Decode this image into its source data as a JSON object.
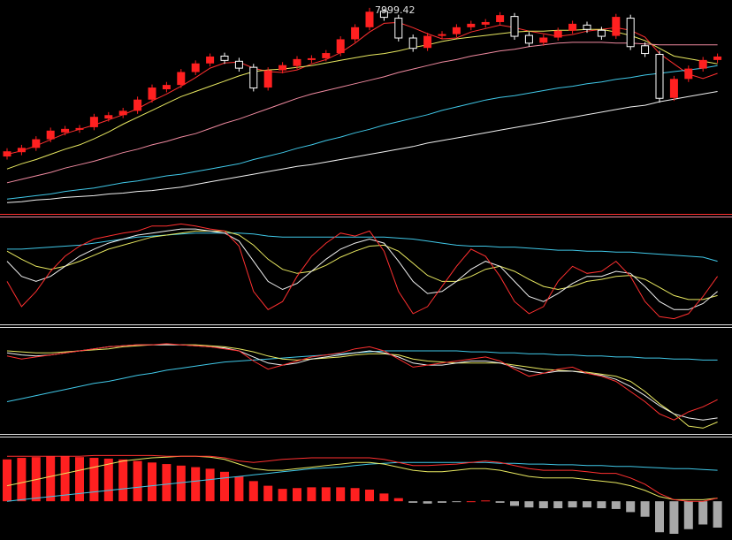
{
  "chart_data": [
    {
      "type": "candlestick",
      "annotation": "7999.42",
      "ylim": [
        5650,
        8050
      ],
      "up_color": "#ff2020",
      "down_color": "#ffffff",
      "open": [
        6280,
        6330,
        6380,
        6480,
        6560,
        6590,
        6620,
        6720,
        6760,
        6810,
        6940,
        7060,
        7110,
        7260,
        7360,
        7440,
        7380,
        7310,
        7080,
        7280,
        7330,
        7400,
        7420,
        7480,
        7640,
        7780,
        7960,
        7880,
        7650,
        7540,
        7680,
        7700,
        7780,
        7810,
        7840,
        7900,
        7680,
        7600,
        7660,
        7740,
        7800,
        7740,
        7680,
        7880,
        7560,
        7460,
        6960,
        7180,
        7300,
        7400
      ],
      "high": [
        6370,
        6410,
        6510,
        6610,
        6630,
        6640,
        6770,
        6790,
        6840,
        6970,
        7110,
        7140,
        7290,
        7390,
        7470,
        7480,
        7420,
        7350,
        7310,
        7370,
        7440,
        7450,
        7510,
        7670,
        7810,
        7999.42,
        7990,
        7920,
        7690,
        7710,
        7730,
        7810,
        7850,
        7870,
        7950,
        7940,
        7720,
        7690,
        7770,
        7850,
        7840,
        7780,
        7930,
        7920,
        7600,
        7500,
        7210,
        7330,
        7430,
        7470
      ],
      "low": [
        6240,
        6290,
        6340,
        6440,
        6520,
        6550,
        6580,
        6680,
        6720,
        6770,
        6900,
        7020,
        7070,
        7220,
        7320,
        7350,
        7260,
        7030,
        7040,
        7240,
        7290,
        7360,
        7380,
        7440,
        7600,
        7740,
        7850,
        7610,
        7490,
        7500,
        7640,
        7660,
        7740,
        7770,
        7800,
        7630,
        7550,
        7560,
        7620,
        7700,
        7710,
        7630,
        7640,
        7510,
        7430,
        6900,
        6920,
        7140,
        7260,
        7360
      ],
      "close": [
        6330,
        6370,
        6470,
        6570,
        6590,
        6600,
        6730,
        6750,
        6800,
        6930,
        7070,
        7100,
        7250,
        7350,
        7430,
        7390,
        7300,
        7070,
        7270,
        7330,
        7400,
        7410,
        7470,
        7630,
        7770,
        7950,
        7890,
        7650,
        7530,
        7670,
        7690,
        7770,
        7810,
        7830,
        7910,
        7670,
        7590,
        7650,
        7730,
        7810,
        7750,
        7670,
        7890,
        7550,
        7470,
        6950,
        7170,
        7290,
        7390,
        7430
      ],
      "series": [
        {
          "color": "#ff3030",
          "values": [
            6300,
            6340,
            6400,
            6470,
            6540,
            6590,
            6640,
            6700,
            6760,
            6830,
            6920,
            7000,
            7090,
            7190,
            7300,
            7360,
            7370,
            7300,
            7260,
            7250,
            7280,
            7350,
            7400,
            7480,
            7590,
            7720,
            7820,
            7830,
            7770,
            7700,
            7640,
            7650,
            7720,
            7760,
            7800,
            7770,
            7730,
            7700,
            7670,
            7690,
            7730,
            7750,
            7770,
            7740,
            7660,
            7470,
            7350,
            7230,
            7180,
            7240
          ]
        },
        {
          "color": "#e8e860",
          "values": [
            6130,
            6190,
            6240,
            6300,
            6360,
            6410,
            6480,
            6560,
            6650,
            6730,
            6810,
            6890,
            6970,
            7030,
            7090,
            7150,
            7210,
            7260,
            7280,
            7290,
            7310,
            7330,
            7360,
            7390,
            7420,
            7450,
            7470,
            7500,
            7540,
            7570,
            7610,
            7640,
            7660,
            7680,
            7700,
            7720,
            7730,
            7730,
            7740,
            7740,
            7750,
            7750,
            7720,
            7680,
            7620,
            7530,
            7440,
            7410,
            7380,
            7350
          ]
        },
        {
          "color": "#f08aa0",
          "values": [
            5970,
            6010,
            6050,
            6090,
            6140,
            6180,
            6220,
            6270,
            6320,
            6360,
            6410,
            6450,
            6500,
            6540,
            6600,
            6660,
            6710,
            6770,
            6830,
            6890,
            6950,
            7000,
            7040,
            7080,
            7120,
            7160,
            7200,
            7250,
            7290,
            7330,
            7370,
            7400,
            7440,
            7470,
            7500,
            7520,
            7550,
            7570,
            7590,
            7600,
            7600,
            7600,
            7590,
            7590,
            7580,
            7570,
            7570,
            7570,
            7570,
            7570
          ]
        },
        {
          "color": "#40c8e8",
          "values": [
            5780,
            5800,
            5820,
            5840,
            5870,
            5890,
            5910,
            5940,
            5970,
            5990,
            6020,
            6050,
            6070,
            6100,
            6130,
            6160,
            6190,
            6240,
            6280,
            6320,
            6370,
            6410,
            6460,
            6500,
            6550,
            6590,
            6640,
            6680,
            6720,
            6760,
            6810,
            6850,
            6890,
            6930,
            6960,
            6980,
            7010,
            7040,
            7070,
            7090,
            7120,
            7140,
            7170,
            7190,
            7220,
            7240,
            7260,
            7280,
            7300,
            7330
          ]
        },
        {
          "color": "#f0f0f0",
          "values": [
            5740,
            5750,
            5770,
            5780,
            5800,
            5810,
            5820,
            5840,
            5850,
            5870,
            5880,
            5900,
            5920,
            5950,
            5980,
            6010,
            6040,
            6070,
            6100,
            6130,
            6160,
            6180,
            6210,
            6240,
            6270,
            6300,
            6330,
            6360,
            6390,
            6430,
            6460,
            6490,
            6520,
            6550,
            6580,
            6610,
            6640,
            6670,
            6700,
            6730,
            6760,
            6790,
            6820,
            6850,
            6870,
            6910,
            6940,
            6970,
            7000,
            7030
          ]
        }
      ]
    },
    {
      "type": "line",
      "ylim": [
        0,
        100
      ],
      "series": [
        {
          "color": "#40c8e8",
          "values": [
            72,
            72,
            73,
            74,
            75,
            76,
            78,
            80,
            82,
            84,
            85,
            86,
            87,
            88,
            88,
            88,
            88,
            87,
            85,
            84,
            84,
            84,
            84,
            84,
            84,
            84,
            84,
            83,
            82,
            80,
            78,
            76,
            75,
            75,
            74,
            74,
            73,
            72,
            71,
            71,
            70,
            70,
            69,
            69,
            68,
            67,
            66,
            65,
            64,
            60
          ]
        },
        {
          "color": "#e8e860",
          "values": [
            70,
            62,
            55,
            52,
            55,
            60,
            66,
            72,
            76,
            80,
            84,
            86,
            88,
            90,
            90,
            90,
            86,
            76,
            62,
            52,
            48,
            50,
            56,
            64,
            70,
            75,
            76,
            70,
            58,
            46,
            40,
            40,
            45,
            52,
            55,
            50,
            42,
            35,
            32,
            35,
            40,
            42,
            45,
            46,
            42,
            34,
            26,
            22,
            22,
            26
          ]
        },
        {
          "color": "#f0f0f0",
          "values": [
            60,
            45,
            40,
            45,
            55,
            65,
            72,
            78,
            82,
            86,
            88,
            90,
            92,
            92,
            90,
            88,
            80,
            60,
            40,
            32,
            38,
            50,
            62,
            72,
            78,
            82,
            78,
            60,
            40,
            28,
            30,
            40,
            52,
            60,
            55,
            40,
            25,
            20,
            28,
            38,
            45,
            45,
            50,
            48,
            35,
            20,
            12,
            12,
            18,
            30
          ]
        },
        {
          "color": "#ff3030",
          "values": [
            40,
            15,
            30,
            50,
            65,
            75,
            82,
            85,
            88,
            90,
            95,
            95,
            97,
            95,
            92,
            90,
            75,
            30,
            12,
            20,
            45,
            65,
            78,
            88,
            85,
            90,
            70,
            30,
            8,
            15,
            35,
            55,
            72,
            65,
            45,
            20,
            8,
            15,
            40,
            55,
            48,
            50,
            60,
            45,
            20,
            5,
            3,
            8,
            25,
            45
          ]
        }
      ]
    },
    {
      "type": "line",
      "ylim": [
        0,
        100
      ],
      "series": [
        {
          "color": "#40c8e8",
          "values": [
            30,
            33,
            36,
            39,
            42,
            45,
            48,
            50,
            53,
            56,
            58,
            61,
            63,
            65,
            67,
            69,
            70,
            71,
            72,
            73,
            74,
            75,
            76,
            77,
            78,
            79,
            80,
            80,
            80,
            80,
            80,
            80,
            79,
            79,
            78,
            78,
            77,
            77,
            76,
            76,
            75,
            75,
            74,
            74,
            73,
            73,
            72,
            72,
            71,
            71
          ]
        },
        {
          "color": "#e8e860",
          "values": [
            80,
            79,
            78,
            78,
            79,
            80,
            81,
            82,
            84,
            85,
            86,
            86,
            86,
            86,
            85,
            84,
            82,
            79,
            75,
            72,
            71,
            72,
            73,
            74,
            76,
            77,
            77,
            76,
            72,
            70,
            69,
            68,
            68,
            68,
            68,
            66,
            64,
            62,
            61,
            60,
            59,
            57,
            55,
            50,
            40,
            28,
            18,
            6,
            4,
            10
          ]
        },
        {
          "color": "#f0f0f0",
          "values": [
            78,
            76,
            75,
            76,
            78,
            80,
            82,
            84,
            85,
            86,
            86,
            86,
            86,
            85,
            84,
            83,
            80,
            74,
            68,
            66,
            68,
            72,
            74,
            76,
            78,
            80,
            78,
            74,
            68,
            66,
            66,
            68,
            70,
            70,
            68,
            64,
            60,
            58,
            60,
            60,
            58,
            56,
            52,
            45,
            36,
            26,
            18,
            14,
            12,
            14
          ]
        },
        {
          "color": "#ff3030",
          "values": [
            75,
            72,
            74,
            76,
            78,
            80,
            82,
            84,
            85,
            86,
            86,
            87,
            86,
            85,
            84,
            82,
            80,
            70,
            62,
            66,
            70,
            74,
            76,
            78,
            82,
            84,
            80,
            72,
            64,
            66,
            68,
            70,
            72,
            74,
            70,
            62,
            55,
            58,
            62,
            64,
            58,
            55,
            50,
            40,
            30,
            18,
            12,
            20,
            25,
            32
          ]
        }
      ]
    },
    {
      "type": "histogram_lines",
      "ylim": [
        -50,
        80
      ],
      "color": "#ff2020",
      "negative_color": "#a8a8a8",
      "values": [
        54,
        56,
        57,
        58,
        58,
        57,
        56,
        55,
        54,
        52,
        50,
        48,
        46,
        44,
        42,
        38,
        32,
        26,
        20,
        16,
        17,
        18,
        18,
        18,
        17,
        15,
        10,
        4,
        -2,
        -3,
        -2,
        -1,
        0,
        1,
        -2,
        -6,
        -8,
        -9,
        -9,
        -8,
        -8,
        -9,
        -10,
        -14,
        -20,
        -40,
        -42,
        -36,
        -30,
        -34
      ],
      "series": [
        {
          "color": "#40c8e8",
          "values": [
            0,
            2,
            4,
            6,
            8,
            10,
            12,
            14,
            16,
            18,
            20,
            22,
            24,
            26,
            28,
            30,
            32,
            34,
            36,
            38,
            40,
            42,
            43,
            44,
            46,
            48,
            49,
            50,
            50,
            50,
            50,
            50,
            50,
            50,
            49,
            49,
            48,
            48,
            47,
            47,
            46,
            46,
            45,
            45,
            44,
            43,
            42,
            42,
            41,
            40
          ]
        },
        {
          "color": "#e8e860",
          "values": [
            20,
            24,
            28,
            32,
            36,
            40,
            44,
            48,
            52,
            54,
            56,
            57,
            58,
            58,
            57,
            54,
            48,
            42,
            40,
            40,
            42,
            44,
            46,
            48,
            50,
            50,
            48,
            44,
            40,
            38,
            38,
            40,
            42,
            42,
            40,
            36,
            32,
            30,
            30,
            30,
            28,
            26,
            24,
            20,
            14,
            6,
            2,
            2,
            2,
            4
          ]
        },
        {
          "color": "#ff3030",
          "values": [
            58,
            58,
            58,
            58,
            58,
            58,
            59,
            59,
            59,
            59,
            59,
            58,
            58,
            58,
            58,
            56,
            52,
            50,
            52,
            54,
            55,
            56,
            56,
            56,
            56,
            56,
            54,
            50,
            46,
            46,
            47,
            48,
            50,
            52,
            50,
            46,
            42,
            40,
            40,
            40,
            38,
            36,
            36,
            30,
            22,
            10,
            2,
            0,
            0,
            4
          ]
        }
      ]
    }
  ]
}
